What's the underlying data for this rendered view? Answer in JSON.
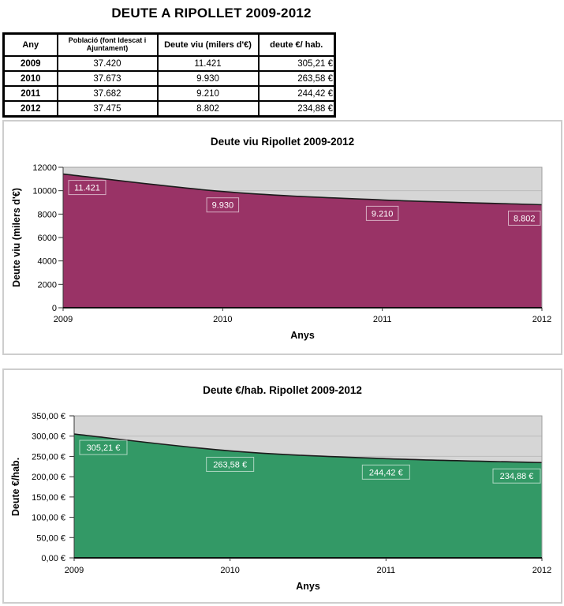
{
  "page": {
    "title": "DEUTE A RIPOLLET 2009-2012"
  },
  "table": {
    "headers": [
      "Any",
      "Població (font Idescat i Ajuntament)",
      "Deute viu (milers d'€)",
      "deute €/ hab."
    ],
    "rows": [
      [
        "2009",
        "37.420",
        "11.421",
        "305,21 €"
      ],
      [
        "2010",
        "37.673",
        "9.930",
        "263,58 €"
      ],
      [
        "2011",
        "37.682",
        "9.210",
        "244,42 €"
      ],
      [
        "2012",
        "37.475",
        "8.802",
        "234,88 €"
      ]
    ]
  },
  "chart_data": [
    {
      "type": "area",
      "title": "Deute viu Ripollet 2009-2012",
      "xlabel": "Anys",
      "ylabel": "Deute viu (milers d'€)",
      "categories": [
        "2009",
        "2010",
        "2011",
        "2012"
      ],
      "values": [
        11421,
        9930,
        9210,
        8802
      ],
      "point_labels": [
        "11.421",
        "9.930",
        "9.210",
        "8.802"
      ],
      "ylim": [
        0,
        12000
      ],
      "ytick_values": [
        0,
        2000,
        4000,
        6000,
        8000,
        10000,
        12000
      ],
      "ytick_labels": [
        "0",
        "2000",
        "4000",
        "6000",
        "8000",
        "10000",
        "12000"
      ],
      "area_color": "#993366",
      "line_color": "#1b1b1b",
      "plot_bg": "#d6d6d6",
      "grid": true,
      "legend": "none",
      "smoothed": true
    },
    {
      "type": "area",
      "title": "Deute €/hab. Ripollet 2009-2012",
      "xlabel": "Anys",
      "ylabel": "Deute €/hab.",
      "categories": [
        "2009",
        "2010",
        "2011",
        "2012"
      ],
      "values": [
        305.21,
        263.58,
        244.42,
        234.88
      ],
      "point_labels": [
        "305,21 €",
        "263,58 €",
        "244,42 €",
        "234,88 €"
      ],
      "ylim": [
        0,
        350
      ],
      "ytick_values": [
        0,
        50,
        100,
        150,
        200,
        250,
        300,
        350
      ],
      "ytick_labels": [
        "0,00 €",
        "50,00 €",
        "100,00 €",
        "150,00 €",
        "200,00 €",
        "250,00 €",
        "300,00 €",
        "350,00 €"
      ],
      "area_color": "#339966",
      "line_color": "#1b1b1b",
      "plot_bg": "#d6d6d6",
      "grid": true,
      "legend": "none",
      "smoothed": true
    }
  ]
}
